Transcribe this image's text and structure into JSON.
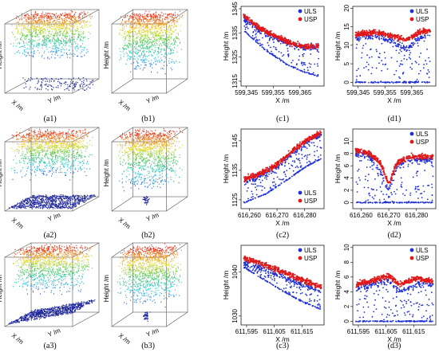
{
  "colors": {
    "uls": "#1f2fd6",
    "usp": "#e01818",
    "box": "#555555"
  },
  "panels_3d": [
    {
      "label": "(a1)",
      "xlab": "X /m",
      "ylab": "Y /m",
      "zlab": "Height /m",
      "ground": "sparse",
      "ground_shape": "flat"
    },
    {
      "label": "(b1)",
      "xlab": "X /m",
      "ylab": "Y /m",
      "zlab": "Height /m",
      "ground": "none",
      "ground_shape": "none"
    },
    {
      "label": "(a2)",
      "xlab": "X /m",
      "ylab": "Y /m",
      "zlab": "Height /m",
      "ground": "dense",
      "ground_shape": "flat"
    },
    {
      "label": "(b2)",
      "xlab": "X /m",
      "ylab": "Y /m",
      "zlab": "Height /m",
      "ground": "small",
      "ground_shape": "none"
    },
    {
      "label": "(a3)",
      "xlab": "X /m",
      "ylab": "Y /m",
      "zlab": "Height /m",
      "ground": "dense",
      "ground_shape": "tilted"
    },
    {
      "label": "(b3)",
      "xlab": "X /m",
      "ylab": "Y /m",
      "zlab": "Height /m",
      "ground": "small",
      "ground_shape": "none"
    }
  ],
  "chart_data": [
    {
      "label": "(c1)",
      "type": "scatter",
      "xlabel": "X /m",
      "ylabel": "Height /m",
      "xlim": [
        599343,
        599374
      ],
      "ylim": [
        1313,
        1346
      ],
      "xticks": [
        "599,345",
        "599,355",
        "599,365"
      ],
      "xtick_values": [
        599345,
        599355,
        599365
      ],
      "yticks": [
        "1315",
        "1325",
        "1335",
        "1345"
      ],
      "ytick_values": [
        1315,
        1325,
        1335,
        1345
      ],
      "legend": "top-right",
      "series": [
        {
          "name": "ULS",
          "trend": [
            [
              599344,
              1341
            ],
            [
              599350,
              1336
            ],
            [
              599356,
              1333
            ],
            [
              599362,
              1330
            ],
            [
              599367,
              1329
            ],
            [
              599372,
              1329
            ]
          ],
          "ground": [
            [
              599344,
              1336
            ],
            [
              599352,
              1328
            ],
            [
              599360,
              1322
            ],
            [
              599366,
              1319
            ],
            [
              599372,
              1317
            ]
          ]
        },
        {
          "name": "USP",
          "trend": [
            [
              599344,
              1342
            ],
            [
              599350,
              1337
            ],
            [
              599356,
              1333.5
            ],
            [
              599362,
              1330.5
            ],
            [
              599367,
              1329.5
            ],
            [
              599372,
              1329.5
            ]
          ]
        }
      ]
    },
    {
      "label": "(d1)",
      "type": "scatter",
      "xlabel": "X /m",
      "ylabel": "Height /m",
      "xlim": [
        599343,
        599374
      ],
      "ylim": [
        -1,
        20.5
      ],
      "xticks": [
        "599,345",
        "599,355",
        "599,365"
      ],
      "xtick_values": [
        599345,
        599355,
        599365
      ],
      "yticks": [
        "0",
        "5",
        "10",
        "15",
        "20"
      ],
      "ytick_values": [
        0,
        5,
        10,
        15,
        20
      ],
      "legend": "top-right",
      "series": [
        {
          "name": "ULS",
          "trend": [
            [
              599344,
              12
            ],
            [
              599352,
              12.5
            ],
            [
              599358,
              11
            ],
            [
              599363,
              9
            ],
            [
              599368,
              12
            ],
            [
              599372,
              13
            ]
          ],
          "ground": [
            [
              599344,
              0
            ],
            [
              599372,
              0
            ]
          ]
        },
        {
          "name": "USP",
          "trend": [
            [
              599344,
              13
            ],
            [
              599352,
              13.5
            ],
            [
              599358,
              12.5
            ],
            [
              599363,
              11.5
            ],
            [
              599368,
              13.5
            ],
            [
              599372,
              14
            ]
          ]
        }
      ]
    },
    {
      "label": "(c2)",
      "type": "scatter",
      "xlabel": "X /m",
      "ylabel": "Height /m",
      "xlim": [
        616257,
        616287
      ],
      "ylim": [
        1122,
        1149
      ],
      "xticks": [
        "616,260",
        "616,270",
        "616,280"
      ],
      "xtick_values": [
        616260,
        616270,
        616280
      ],
      "yticks": [
        "1125",
        "1135",
        "1145"
      ],
      "ytick_values": [
        1125,
        1135,
        1145
      ],
      "legend": "bottom-right",
      "series": [
        {
          "name": "ULS",
          "trend": [
            [
              616258,
              1131
            ],
            [
              616264,
              1133
            ],
            [
              616270,
              1136
            ],
            [
              616276,
              1141
            ],
            [
              616282,
              1145
            ],
            [
              616286,
              1147
            ]
          ],
          "ground": [
            [
              616258,
              1124
            ],
            [
              616266,
              1127
            ],
            [
              616274,
              1132
            ],
            [
              616280,
              1136
            ],
            [
              616286,
              1139
            ]
          ]
        },
        {
          "name": "USP",
          "trend": [
            [
              616258,
              1132
            ],
            [
              616264,
              1134
            ],
            [
              616270,
              1137
            ],
            [
              616276,
              1142
            ],
            [
              616282,
              1146
            ],
            [
              616286,
              1148
            ]
          ]
        }
      ]
    },
    {
      "label": "(d2)",
      "type": "scatter",
      "xlabel": "X /m",
      "ylabel": "Height /m",
      "xlim": [
        616257,
        616287
      ],
      "ylim": [
        -1,
        12
      ],
      "xticks": [
        "616,260",
        "616,270",
        "616,280"
      ],
      "xtick_values": [
        616260,
        616270,
        616280
      ],
      "yticks": [
        "0",
        "2",
        "4",
        "6",
        "8",
        "10"
      ],
      "ytick_values": [
        0,
        2,
        4,
        6,
        8,
        10
      ],
      "legend": "top-right",
      "series": [
        {
          "name": "ULS",
          "trend": [
            [
              616258,
              8
            ],
            [
              616263,
              7.5
            ],
            [
              616267,
              5
            ],
            [
              616270,
              2
            ],
            [
              616273,
              6
            ],
            [
              616278,
              7
            ],
            [
              616286,
              7
            ]
          ],
          "ground": [
            [
              616258,
              0
            ],
            [
              616286,
              0
            ]
          ]
        },
        {
          "name": "USP",
          "trend": [
            [
              616258,
              8.5
            ],
            [
              616263,
              8
            ],
            [
              616267,
              6.5
            ],
            [
              616270,
              3
            ],
            [
              616273,
              6.5
            ],
            [
              616278,
              7.5
            ],
            [
              616286,
              7.5
            ]
          ]
        }
      ]
    },
    {
      "label": "(c3)",
      "type": "scatter",
      "xlabel": "X /m",
      "ylabel": "Height /m",
      "xlim": [
        611593,
        611623
      ],
      "ylim": [
        1028,
        1046
      ],
      "xticks": [
        "611,595",
        "611,605",
        "611,615"
      ],
      "xtick_values": [
        611595,
        611605,
        611615
      ],
      "yticks": [
        "1030",
        "1040"
      ],
      "ytick_values": [
        1030,
        1040
      ],
      "legend": "top-right",
      "series": [
        {
          "name": "ULS",
          "trend": [
            [
              611594,
              1042
            ],
            [
              611600,
              1041
            ],
            [
              611606,
              1039.5
            ],
            [
              611612,
              1038
            ],
            [
              611618,
              1036.5
            ],
            [
              611622,
              1035.5
            ]
          ],
          "ground": [
            [
              611594,
              1041
            ],
            [
              611602,
              1038
            ],
            [
              611610,
              1035
            ],
            [
              611616,
              1033
            ],
            [
              611622,
              1031.5
            ]
          ]
        },
        {
          "name": "USP",
          "trend": [
            [
              611594,
              1043
            ],
            [
              611600,
              1042
            ],
            [
              611606,
              1040.5
            ],
            [
              611612,
              1039
            ],
            [
              611618,
              1037.5
            ],
            [
              611622,
              1036.5
            ]
          ]
        }
      ]
    },
    {
      "label": "(d3)",
      "type": "scatter",
      "xlabel": "X /m",
      "ylabel": "Height /m",
      "xlim": [
        611593,
        611623
      ],
      "ylim": [
        -0.5,
        10.3
      ],
      "xticks": [
        "611,595",
        "611,605",
        "611,615"
      ],
      "xtick_values": [
        611595,
        611605,
        611615
      ],
      "yticks": [
        "0",
        "2",
        "4",
        "6",
        "8",
        "10"
      ],
      "ytick_values": [
        0,
        2,
        4,
        6,
        8,
        10
      ],
      "legend": "top-right",
      "series": [
        {
          "name": "ULS",
          "trend": [
            [
              611594,
              4.5
            ],
            [
              611600,
              5
            ],
            [
              611606,
              5.5
            ],
            [
              611610,
              4
            ],
            [
              611616,
              5
            ],
            [
              611622,
              5
            ]
          ],
          "ground": [
            [
              611594,
              0
            ],
            [
              611622,
              0
            ]
          ]
        },
        {
          "name": "USP",
          "trend": [
            [
              611594,
              5
            ],
            [
              611600,
              5.5
            ],
            [
              611606,
              6.2
            ],
            [
              611610,
              5
            ],
            [
              611616,
              5.8
            ],
            [
              611622,
              5.5
            ]
          ]
        }
      ]
    }
  ]
}
